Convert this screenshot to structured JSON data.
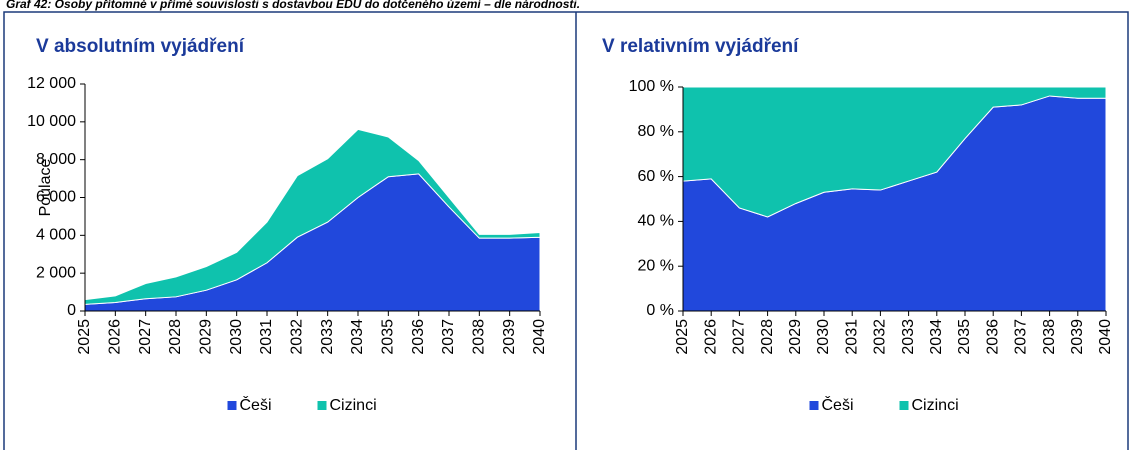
{
  "caption": "Graf 42: Osoby přítomné v přímé souvislosti s dostavbou EDU do dotčeného území – dle národnosti.",
  "chart_data": [
    {
      "type": "stacked_area",
      "title": "V absolutním vyjádření",
      "y_label": "Poulace",
      "categories": [
        "2025",
        "2026",
        "2027",
        "2028",
        "2029",
        "2030",
        "2031",
        "2032",
        "2033",
        "2034",
        "2035",
        "2036",
        "2037",
        "2038",
        "2039",
        "2040"
      ],
      "series": [
        {
          "name": "Češi",
          "color": "#2148dc",
          "values": [
            350,
            450,
            650,
            750,
            1100,
            1650,
            2550,
            3900,
            4700,
            6000,
            7100,
            7250,
            5500,
            3850,
            3850,
            3900
          ]
        },
        {
          "name": "Cizinci",
          "color": "#0fc2ad",
          "values": [
            250,
            350,
            800,
            1050,
            1250,
            1450,
            2150,
            3250,
            3350,
            3600,
            2100,
            700,
            500,
            200,
            200,
            250
          ]
        }
      ],
      "ylim": [
        0,
        12000
      ],
      "yticks": [
        0,
        {
          "value": 2000,
          "label": "2 000"
        },
        {
          "value": 4000,
          "label": "4 000"
        },
        {
          "value": 6000,
          "label": "6 000"
        },
        {
          "value": 8000,
          "label": "8 000"
        },
        {
          "value": 10000,
          "label": "10 000"
        },
        {
          "value": 12000,
          "label": "12 000"
        }
      ],
      "legend": "bottom"
    },
    {
      "type": "stacked_area",
      "title": "V relativním vyjádření",
      "categories": [
        "2025",
        "2026",
        "2027",
        "2028",
        "2029",
        "2030",
        "2031",
        "2032",
        "2033",
        "2034",
        "2035",
        "2036",
        "2037",
        "2038",
        "2039",
        "2040"
      ],
      "series": [
        {
          "name": "Češi",
          "color": "#2148dc",
          "values": [
            58,
            59,
            46,
            42,
            48,
            53,
            54.5,
            54,
            58,
            62,
            77,
            91,
            92,
            96,
            95,
            95
          ]
        },
        {
          "name": "Cizinci",
          "color": "#0fc2ad",
          "values": [
            42,
            41,
            54,
            58,
            52,
            47,
            45.5,
            46,
            42,
            38,
            23,
            9,
            8,
            4,
            5,
            5
          ]
        }
      ],
      "ylim": [
        0,
        100
      ],
      "yticks": [
        {
          "value": 0,
          "label": "0 %"
        },
        {
          "value": 20,
          "label": "20 %"
        },
        {
          "value": 40,
          "label": "40 %"
        },
        {
          "value": 60,
          "label": "60 %"
        },
        {
          "value": 80,
          "label": "80 %"
        },
        {
          "value": 100,
          "label": "100 %"
        }
      ],
      "legend": "bottom"
    }
  ]
}
